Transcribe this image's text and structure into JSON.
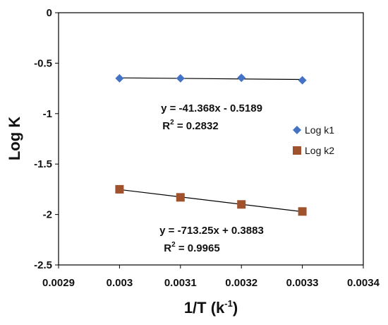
{
  "chart_data": {
    "type": "scatter",
    "title": "",
    "xlabel": "1/T (k-1)",
    "xlabel_main": "1/T (k",
    "xlabel_sup": "-1",
    "xlabel_close": ")",
    "ylabel": "Log K",
    "xlim": [
      0.0029,
      0.0034
    ],
    "ylim": [
      -2.5,
      0
    ],
    "xticks": [
      "0.0029",
      "0.003",
      "0.0031",
      "0.0032",
      "0.0033",
      "0.0034"
    ],
    "yticks": [
      "0",
      "-0.5",
      "-1",
      "-1.5",
      "-2",
      "-2.5"
    ],
    "grid": false,
    "legend_position": "right",
    "series": [
      {
        "name": "Log k1",
        "marker": "diamond",
        "color": "#4472C4",
        "x": [
          0.003,
          0.0031,
          0.0032,
          0.0033
        ],
        "y": [
          -0.65,
          -0.65,
          -0.645,
          -0.67
        ],
        "trendline": {
          "equation": "y = -41.368x - 0.5189",
          "r2_label": "R",
          "r2_sup": "2",
          "r2_value": " = 0.2832"
        }
      },
      {
        "name": "Log k2",
        "marker": "square",
        "color": "#A0522D",
        "x": [
          0.003,
          0.0031,
          0.0032,
          0.0033
        ],
        "y": [
          -1.75,
          -1.83,
          -1.9,
          -1.97
        ],
        "trendline": {
          "equation": "y = -713.25x + 0.3883",
          "r2_label": "R",
          "r2_sup": "2",
          "r2_value": " = 0.9965"
        }
      }
    ]
  }
}
